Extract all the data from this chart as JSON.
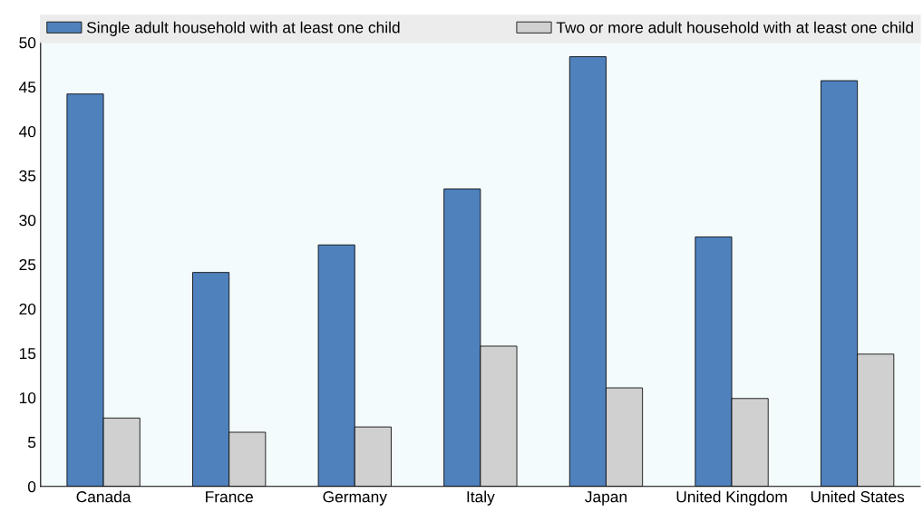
{
  "chart_data": {
    "type": "bar",
    "categories": [
      "Canada",
      "France",
      "Germany",
      "Italy",
      "Japan",
      "United Kingdom",
      "United States"
    ],
    "series": [
      {
        "name": "Single adult household with at least one child",
        "color": "#4f81bd",
        "values": [
          44.2,
          24.1,
          27.2,
          33.5,
          48.4,
          28.1,
          45.7
        ]
      },
      {
        "name": "Two or more adult household with at least one child",
        "color": "#d0d0d0",
        "values": [
          7.7,
          6.1,
          6.7,
          15.8,
          11.1,
          9.9,
          14.9
        ]
      }
    ],
    "ylim": [
      0,
      50
    ],
    "yticks": [
      0,
      5,
      10,
      15,
      20,
      25,
      30,
      35,
      40,
      45,
      50
    ],
    "grid": false,
    "legend": "top"
  }
}
